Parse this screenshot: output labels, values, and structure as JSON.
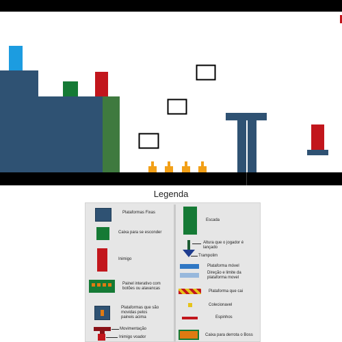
{
  "colors": {
    "fixed_platform": "#2f5273",
    "hide_box": "#157a35",
    "enemy": "#c2161c",
    "ladder": "#3f7a3f",
    "collectible": "#f2a018",
    "ground": "#000000",
    "legend_bg": "#e6e6e6",
    "moving_platform": "#2f77c4",
    "moving_platform_limit": "#97b8dc",
    "falling_stripe_red": "#c2161c",
    "falling_stripe_yellow": "#e6c31a",
    "boss_box": "#e07a12",
    "light_blue_block": "#1c9ce0"
  },
  "legend": {
    "title": "Legenda",
    "items": {
      "fixed_platforms": "Plataformas Fixas",
      "hide_box": "Caixa para se esconder",
      "enemy": "Inimigo",
      "interactive_panel": "Painel interativo com botões ou alavancas",
      "panel_moved_platforms": "Plataformas que são movidas pelos paineis acima",
      "movement": "Movimentação",
      "flying_enemy": "Inimigo voador",
      "ladder": "Escada",
      "jump_height": "Altura que o jogador é lançado",
      "trampoline": "Trampolim",
      "moving_platform": "Plataforma móvel",
      "moving_platform_limit": "Direção e limite da plataforma movel",
      "falling_platform": "Plataforma que cai",
      "collectible": "Colecionavel",
      "spikes": "Espinhos",
      "boss_box": "Caixa para derrota o Boss"
    }
  }
}
